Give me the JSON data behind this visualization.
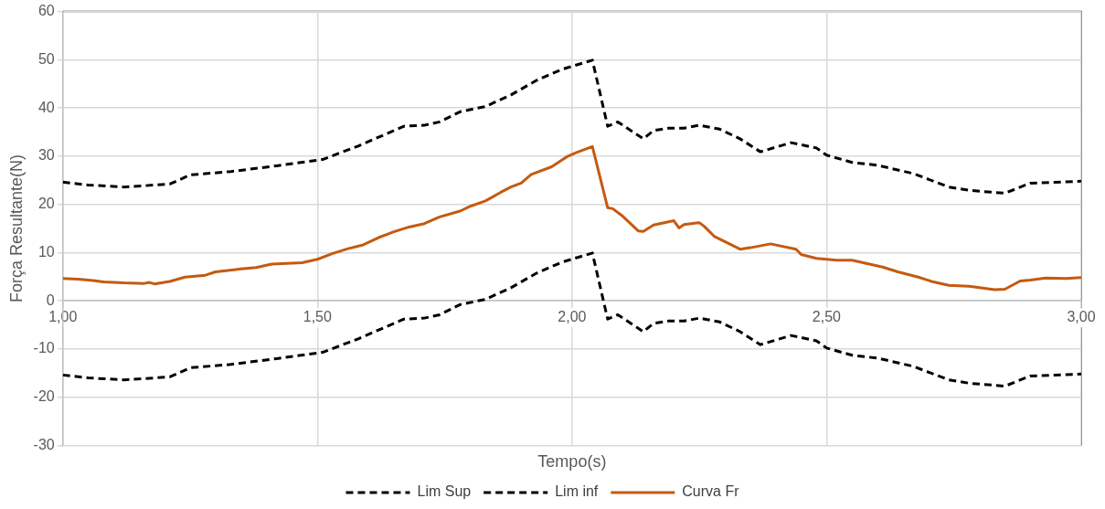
{
  "chart_data": {
    "type": "line",
    "xlabel": "Tempo(s)",
    "ylabel": "Força Resultante(N)",
    "xlim": [
      1,
      3
    ],
    "xticks": [
      {
        "value": 1,
        "label": "1,00"
      },
      {
        "value": 1.5,
        "label": "1,50"
      },
      {
        "value": 2,
        "label": "2,00"
      },
      {
        "value": 2.5,
        "label": "2,50"
      },
      {
        "value": 3,
        "label": "3,00"
      }
    ],
    "ylim": [
      -30,
      60
    ],
    "yticks": [
      -30,
      -20,
      -10,
      0,
      10,
      20,
      30,
      40,
      50,
      60
    ],
    "grid": true,
    "legend": "bottom",
    "marker": "none",
    "series": [
      {
        "name": "Lim Sup",
        "color": "#000000",
        "line_style": "dashed",
        "x": [
          1.0,
          1.05,
          1.12,
          1.21,
          1.25,
          1.33,
          1.42,
          1.51,
          1.58,
          1.67,
          1.71,
          1.74,
          1.78,
          1.83,
          1.88,
          1.93,
          1.98,
          2.04,
          2.07,
          2.09,
          2.14,
          2.16,
          2.19,
          2.22,
          2.25,
          2.29,
          2.33,
          2.37,
          2.43,
          2.48,
          2.5,
          2.55,
          2.6,
          2.67,
          2.74,
          2.78,
          2.85,
          2.9,
          3.0
        ],
        "values": [
          24.6,
          24.0,
          23.6,
          24.2,
          26.1,
          26.8,
          28.0,
          29.3,
          32.1,
          36.2,
          36.4,
          37.1,
          39.2,
          40.3,
          42.7,
          45.7,
          48.0,
          49.9,
          36.2,
          37.1,
          33.6,
          35.3,
          35.8,
          35.8,
          36.4,
          35.6,
          33.6,
          30.9,
          32.8,
          31.7,
          30.2,
          28.7,
          28.1,
          26.4,
          23.6,
          22.9,
          22.3,
          24.4,
          24.8
        ]
      },
      {
        "name": "Lim inf",
        "color": "#000000",
        "line_style": "dashed",
        "x": [
          1.0,
          1.05,
          1.12,
          1.21,
          1.25,
          1.33,
          1.42,
          1.51,
          1.58,
          1.67,
          1.71,
          1.74,
          1.78,
          1.83,
          1.88,
          1.93,
          1.98,
          2.04,
          2.07,
          2.09,
          2.14,
          2.16,
          2.19,
          2.22,
          2.25,
          2.29,
          2.33,
          2.37,
          2.43,
          2.48,
          2.5,
          2.55,
          2.6,
          2.67,
          2.74,
          2.78,
          2.85,
          2.9,
          3.0
        ],
        "values": [
          -15.4,
          -16.0,
          -16.4,
          -15.8,
          -13.9,
          -13.2,
          -12.0,
          -10.7,
          -7.9,
          -3.8,
          -3.6,
          -2.9,
          -0.8,
          0.3,
          2.7,
          5.7,
          8.0,
          9.9,
          -3.8,
          -2.9,
          -6.4,
          -4.7,
          -4.2,
          -4.2,
          -3.6,
          -4.4,
          -6.4,
          -9.1,
          -7.2,
          -8.3,
          -9.8,
          -11.3,
          -11.9,
          -13.6,
          -16.4,
          -17.1,
          -17.7,
          -15.6,
          -15.2
        ]
      },
      {
        "name": "Curva Fr",
        "color": "#c55a11",
        "line_style": "solid",
        "x": [
          1.0,
          1.03,
          1.06,
          1.08,
          1.12,
          1.16,
          1.17,
          1.18,
          1.21,
          1.24,
          1.28,
          1.3,
          1.35,
          1.38,
          1.41,
          1.47,
          1.5,
          1.53,
          1.56,
          1.59,
          1.62,
          1.65,
          1.68,
          1.71,
          1.74,
          1.78,
          1.8,
          1.83,
          1.86,
          1.88,
          1.9,
          1.92,
          1.96,
          1.99,
          2.01,
          2.04,
          2.07,
          2.08,
          2.1,
          2.13,
          2.14,
          2.16,
          2.2,
          2.21,
          2.22,
          2.25,
          2.26,
          2.28,
          2.33,
          2.35,
          2.39,
          2.44,
          2.45,
          2.48,
          2.52,
          2.55,
          2.58,
          2.61,
          2.64,
          2.68,
          2.71,
          2.74,
          2.78,
          2.81,
          2.83,
          2.85,
          2.88,
          2.9,
          2.93,
          2.97,
          3.0
        ],
        "values": [
          4.6,
          4.5,
          4.2,
          3.9,
          3.7,
          3.6,
          3.8,
          3.5,
          4.0,
          4.9,
          5.3,
          6.0,
          6.6,
          6.9,
          7.6,
          7.9,
          8.6,
          9.8,
          10.8,
          11.6,
          13.1,
          14.3,
          15.3,
          16.0,
          17.4,
          18.6,
          19.6,
          20.7,
          22.5,
          23.6,
          24.4,
          26.2,
          27.8,
          29.9,
          30.8,
          32.0,
          19.3,
          19.1,
          17.5,
          14.5,
          14.4,
          15.7,
          16.6,
          15.1,
          15.8,
          16.2,
          15.4,
          13.3,
          10.7,
          11.0,
          11.8,
          10.7,
          9.6,
          8.8,
          8.4,
          8.4,
          7.7,
          7.0,
          6.0,
          4.9,
          3.9,
          3.2,
          3.0,
          2.6,
          2.3,
          2.4,
          4.1,
          4.3,
          4.7,
          4.6,
          4.8
        ]
      }
    ]
  }
}
